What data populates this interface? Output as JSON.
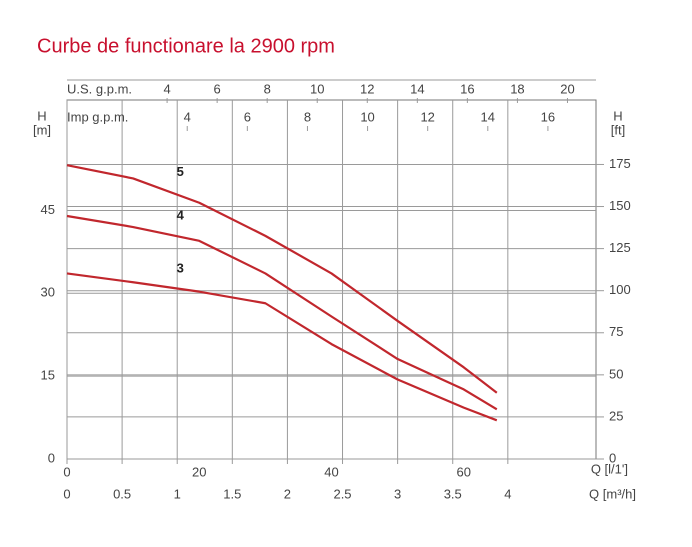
{
  "chart_data": {
    "type": "line",
    "title": "Curbe de functionare la 2900 rpm",
    "xlabel": "Q [l/1']",
    "x": [
      0,
      10,
      20,
      30,
      40,
      50,
      60,
      65
    ],
    "xlim": [
      0,
      80
    ],
    "xticks": [
      0,
      20,
      40,
      60
    ],
    "x2label": "Q [m³/h]",
    "x2lim": [
      0,
      4.8
    ],
    "x2ticks": [
      0,
      0.5,
      1,
      1.5,
      2,
      2.5,
      3,
      3.5,
      4
    ],
    "x3label": "U.S. g.p.m.",
    "x3lim": [
      0,
      21.14
    ],
    "x3ticks": [
      4,
      6,
      8,
      10,
      12,
      14,
      16,
      18,
      20
    ],
    "x4label": "Imp g.p.m.",
    "x4lim": [
      0,
      17.6
    ],
    "x4ticks": [
      4,
      6,
      8,
      10,
      12,
      14,
      16
    ],
    "ylabel": "H",
    "yunit": "[m]",
    "ylim": [
      0,
      65
    ],
    "yticks": [
      0,
      15,
      30,
      45
    ],
    "y2label": "H",
    "y2unit": "[ft]",
    "y2lim": [
      0,
      213.3
    ],
    "y2ticks": [
      0,
      25,
      50,
      75,
      100,
      125,
      150,
      175
    ],
    "grid": true,
    "series": [
      {
        "name": "5",
        "color": "#c1272d",
        "values": [
          53.2,
          50.8,
          46.4,
          40.4,
          33.6,
          25,
          16.6,
          12
        ]
      },
      {
        "name": "4",
        "color": "#c1272d",
        "values": [
          44,
          42,
          39.5,
          33.6,
          25.8,
          18.1,
          12.6,
          9
        ]
      },
      {
        "name": "3",
        "color": "#c1272d",
        "values": [
          33.6,
          32,
          30.3,
          28.2,
          20.8,
          14.4,
          9.3,
          7
        ]
      }
    ]
  }
}
